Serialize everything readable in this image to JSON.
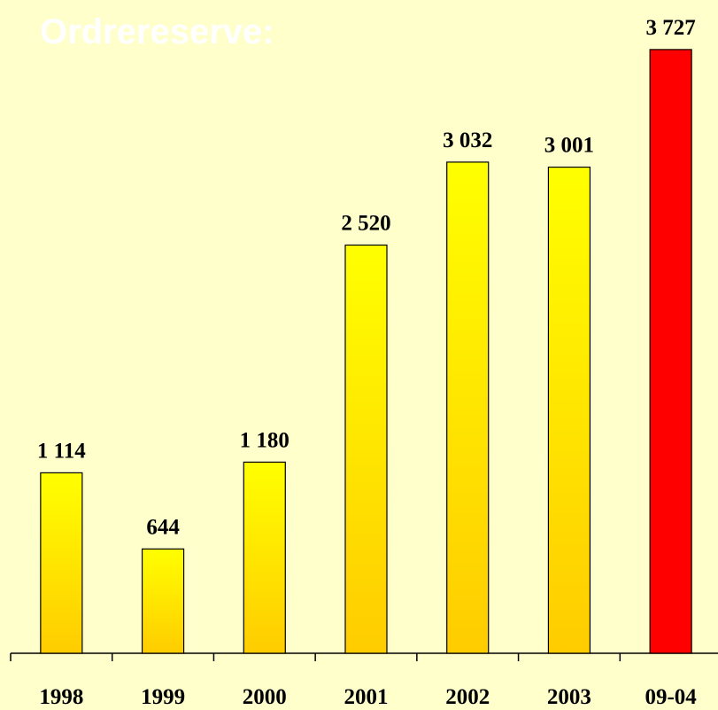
{
  "chart_data": {
    "type": "bar",
    "title": "Ordrereserve:",
    "categories": [
      "1998",
      "1999",
      "2000",
      "2001",
      "2002",
      "2003",
      "09-04"
    ],
    "values": [
      1114,
      644,
      1180,
      2520,
      3032,
      3001,
      3727
    ],
    "value_labels": [
      "1 114",
      "644",
      "1 180",
      "2 520",
      "3 032",
      "3 001",
      "3 727"
    ],
    "colors": [
      "#ffff00",
      "#ffff00",
      "#ffff00",
      "#ffff00",
      "#ffff00",
      "#ffff00",
      "#ff0000"
    ],
    "colors_bottom": [
      "#ffcc00",
      "#ffcc00",
      "#ffcc00",
      "#ffcc00",
      "#ffcc00",
      "#ffcc00",
      "#ff0000"
    ],
    "ylim": [
      0,
      4000
    ]
  }
}
